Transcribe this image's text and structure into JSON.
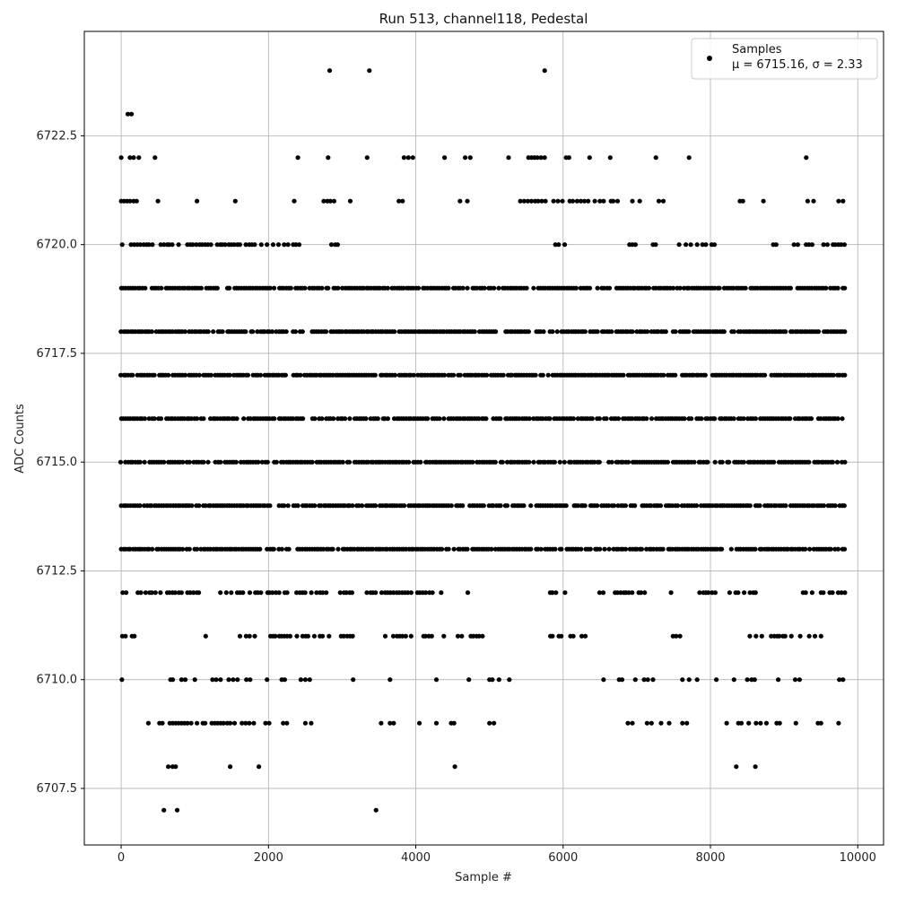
{
  "chart_data": {
    "type": "scatter",
    "title": "Run 513, channel118, Pedestal",
    "xlabel": "Sample #",
    "ylabel": "ADC Counts",
    "xlim": [
      -500,
      10350
    ],
    "ylim": [
      6706.2,
      6724.9
    ],
    "xticks": [
      0,
      2000,
      4000,
      6000,
      8000,
      10000
    ],
    "xtick_labels": [
      "0",
      "2000",
      "4000",
      "6000",
      "8000",
      "10000"
    ],
    "yticks": [
      6707.5,
      6710.0,
      6712.5,
      6715.0,
      6717.5,
      6720.0,
      6722.5
    ],
    "ytick_labels": [
      "6707.5",
      "6710.0",
      "6712.5",
      "6715.0",
      "6717.5",
      "6720.0",
      "6722.5"
    ],
    "grid": true,
    "legend_position": "top-right",
    "marker_color": "#000000",
    "series": [
      {
        "name": "Samples",
        "stats_label": "μ = 6715.16, σ = 2.33",
        "x_range": [
          0,
          9840
        ],
        "levels": [
          {
            "y": 6724,
            "x": [
              2830,
              3370,
              5750
            ]
          },
          {
            "y": 6723,
            "x": [
              90,
              140
            ]
          },
          {
            "y": 6722,
            "x": [
              0,
              120,
              170,
              240,
              460,
              2400,
              2810,
              3340,
              3840,
              3900,
              3960,
              4390,
              4670,
              4740,
              5260,
              5530,
              5570,
              5610,
              5650,
              5700,
              5750,
              6040,
              6080,
              6360,
              6640,
              7260,
              7710,
              9300
            ]
          },
          {
            "y": 6721,
            "x": [
              0,
              40,
              80,
              120,
              170,
              210,
              500,
              1030,
              1550,
              2350,
              2750,
              2800,
              2840,
              2890,
              3110,
              3770,
              3820,
              4600,
              4700,
              5420,
              5470,
              5520,
              5570,
              5620,
              5660,
              5710,
              5760,
              5870,
              5930,
              5990,
              6090,
              6130,
              6190,
              6240,
              6290,
              6340,
              6430,
              6500,
              6550,
              6650,
              6680,
              6740,
              6940,
              7040,
              7300,
              7360,
              8400,
              8440,
              8720,
              9320,
              9400,
              9740,
              9800
            ]
          }
        ],
        "dense_levels": [
          6719,
          6718,
          6717,
          6716,
          6715,
          6714,
          6713
        ],
        "medium_levels": [
          6720,
          6712,
          6711
        ],
        "sparse_level": {
          "y": 6710,
          "x": [
            10,
            670,
            700,
            820,
            870,
            1000,
            1240,
            1290,
            1350,
            1460,
            1520,
            1580,
            1700,
            1750,
            1980,
            2180,
            2220,
            2440,
            2500,
            2560,
            3150,
            3650,
            4280,
            4720,
            5000,
            5040,
            5130,
            5270,
            6550,
            6760,
            6800,
            6980,
            7100,
            7150,
            7220,
            7620,
            7710,
            7820,
            8080,
            8320,
            8500,
            8560,
            8600,
            8920,
            9150,
            9210,
            9750,
            9800
          ]
        },
        "low_levels": [
          {
            "y": 6709,
            "x": [
              370,
              520,
              560,
              660,
              700,
              740,
              780,
              820,
              860,
              900,
              950,
              1030,
              1110,
              1140,
              1230,
              1270,
              1310,
              1350,
              1390,
              1440,
              1480,
              1540,
              1640,
              1690,
              1740,
              1800,
              1960,
              2010,
              2200,
              2250,
              2500,
              2580,
              3530,
              3650,
              3700,
              4050,
              4280,
              4480,
              4520,
              5000,
              5060,
              6880,
              6940,
              7140,
              7200,
              7330,
              7440,
              7620,
              7680,
              8220,
              8380,
              8420,
              8520,
              8620,
              8680,
              8760,
              8900,
              8940,
              9160,
              9460,
              9500,
              9740
            ]
          },
          {
            "y": 6708,
            "x": [
              640,
              700,
              740,
              1480,
              1870,
              4530,
              8350,
              8610
            ]
          },
          {
            "y": 6707,
            "x": [
              580,
              760,
              3460
            ]
          }
        ]
      }
    ]
  }
}
